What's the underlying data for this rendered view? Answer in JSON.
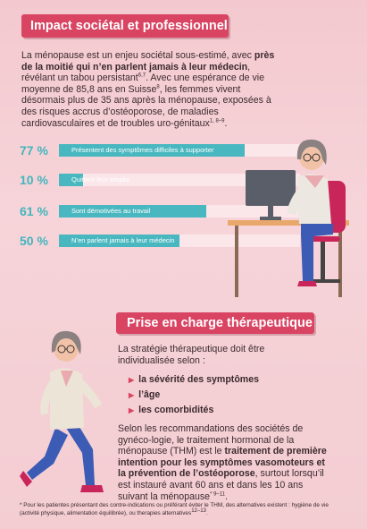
{
  "section1": {
    "title": "Impact sociétal et professionnel",
    "intro_parts": {
      "a": "La ménopause est un enjeu sociétal sous-estimé, avec ",
      "b_bold": "près de la moitié qui n’en parlent jamais à leur médecin",
      "c": ", révélant un tabou persistant",
      "sup1": "6,7",
      "d": ". Avec une espérance de vie moyenne de 85,8 ans en Suisse",
      "sup2": "8",
      "e": ", les femmes vivent désormais plus de 35 ans après la ménopause, exposées à des risques accrus d’ostéoporose, de maladies cardiovasculaires et de troubles uro-génitaux",
      "sup3": "1, 8–9",
      "f": "."
    },
    "stats": [
      {
        "percent_label": "77 %",
        "value": 77,
        "label": "Présentent des symptômes difficiles à supporter"
      },
      {
        "percent_label": "10 %",
        "value": 10,
        "label": "Quittent leur emploi"
      },
      {
        "percent_label": "61 %",
        "value": 61,
        "label": "Sont démotivées au travail"
      },
      {
        "percent_label": "50 %",
        "value": 50,
        "label": "N’en parlent jamais à leur médecin"
      }
    ]
  },
  "section2": {
    "title": "Prise en charge thérapeutique",
    "intro": "La stratégie thérapeutique doit être individualisée selon :",
    "bullets": [
      "la sévérité des symptômes",
      "l’âge",
      "les comorbidités"
    ],
    "body_parts": {
      "a": "Selon les recommandations des sociétés de gynéco-logie, le traitement hormonal de la ménopause (THM) est le ",
      "b_bold": "traitement de première intention pour les symptômes vasomoteurs et la prévention de l’ostéoporose",
      "c": ", surtout lorsqu’il est instauré avant 60 ans et dans les 10 ans suivant la ménopause",
      "sup": "* 9–11",
      "d": "."
    }
  },
  "footnote": {
    "text": "* Pour les patientes présentant des contre-indications ou préférant éviter le THM, des alternatives existent : hygiène de vie (activité physique, alimentation équilibrée), ou therapies alternatives",
    "sup": "12–13",
    "end": "."
  },
  "colors": {
    "accent": "#d94463",
    "teal": "#49b7bf",
    "background": "#f3c9cf"
  },
  "icons": {
    "arrow": "▶"
  }
}
